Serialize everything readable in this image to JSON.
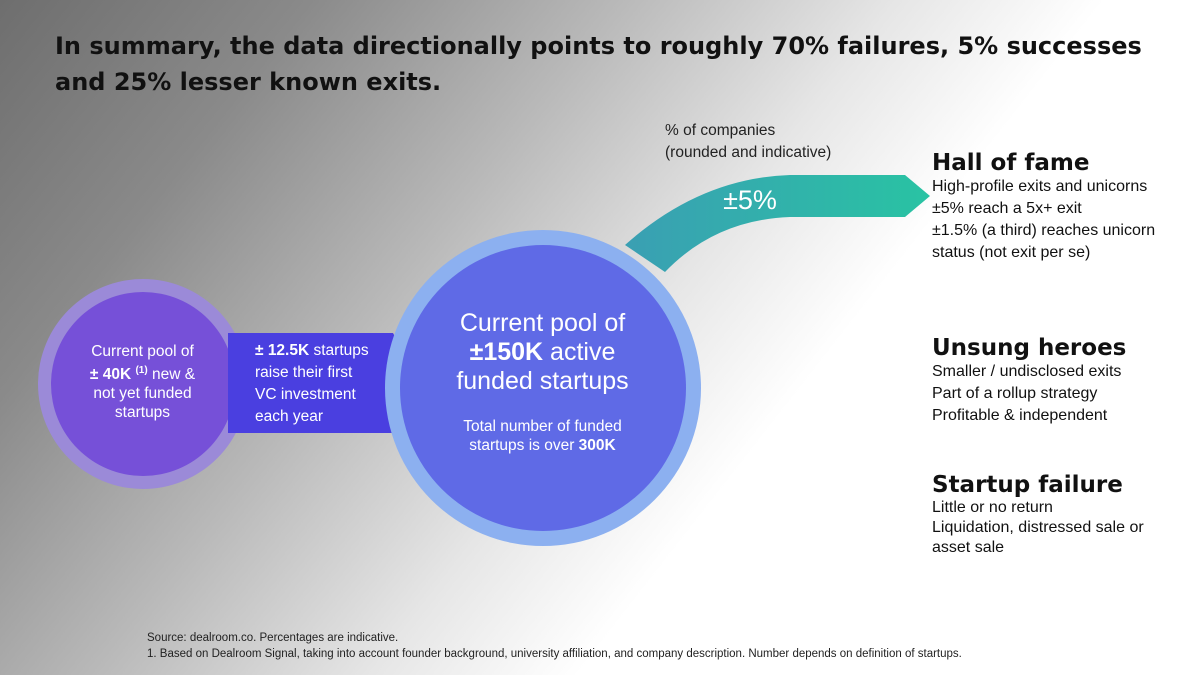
{
  "title": "In summary, the data directionally points to roughly 70% failures, 5% successes and 25% lesser known exits.",
  "colors": {
    "small_circle_ring": "#9b8ad8",
    "small_circle_fill": "#7650d8",
    "arrow": "#4a3fe0",
    "big_circle_ring": "#8cb0f0",
    "big_circle_fill": "#5f6ae6",
    "flow_start": "#3a9fb3",
    "flow_end": "#29c3a3"
  },
  "small_circle": {
    "line1": "Current pool of",
    "line2_bold": "± 40K",
    "footnote_mark": "(1)",
    "line2_rest": " new &",
    "line3": "not yet funded",
    "line4": "startups"
  },
  "arrow": {
    "bold": "± 12.5K",
    "rest1": " startups",
    "line2": "raise their first",
    "line3": "VC investment",
    "line4": "each year"
  },
  "big_circle": {
    "line1": "Current pool of",
    "line2_bold": "±150K",
    "line2_rest": " active",
    "line3": "funded startups",
    "sub1": "Total number of funded",
    "sub2_start": "startups is over ",
    "sub2_bold": "300K"
  },
  "chart_data": {
    "type": "flow",
    "values_label": "% of companies (rounded and indicative)",
    "flows": [
      {
        "target": "Hall of fame",
        "value_label": "±5%",
        "value": 5
      }
    ]
  },
  "pct_label": {
    "line1": "% of companies",
    "line2": "(rounded and indicative)"
  },
  "outcomes": [
    {
      "heading": "Hall of fame",
      "lines": [
        "High-profile exits and unicorns",
        "±5% reach a 5x+ exit",
        "±1.5% (a third) reaches unicorn status (not exit per se)"
      ]
    },
    {
      "heading": "Unsung heroes",
      "lines": [
        "Smaller / undisclosed exits",
        "Part of a rollup strategy",
        "Profitable & independent"
      ]
    },
    {
      "heading": "Startup failure",
      "lines": [
        "Little or no return",
        "Liquidation, distressed sale or asset sale"
      ]
    }
  ],
  "footer": {
    "source": "Source: dealroom.co. Percentages are indicative.",
    "note": "1. Based on Dealroom Signal, taking into account founder background, university affiliation, and company description. Number depends on definition of startups."
  }
}
